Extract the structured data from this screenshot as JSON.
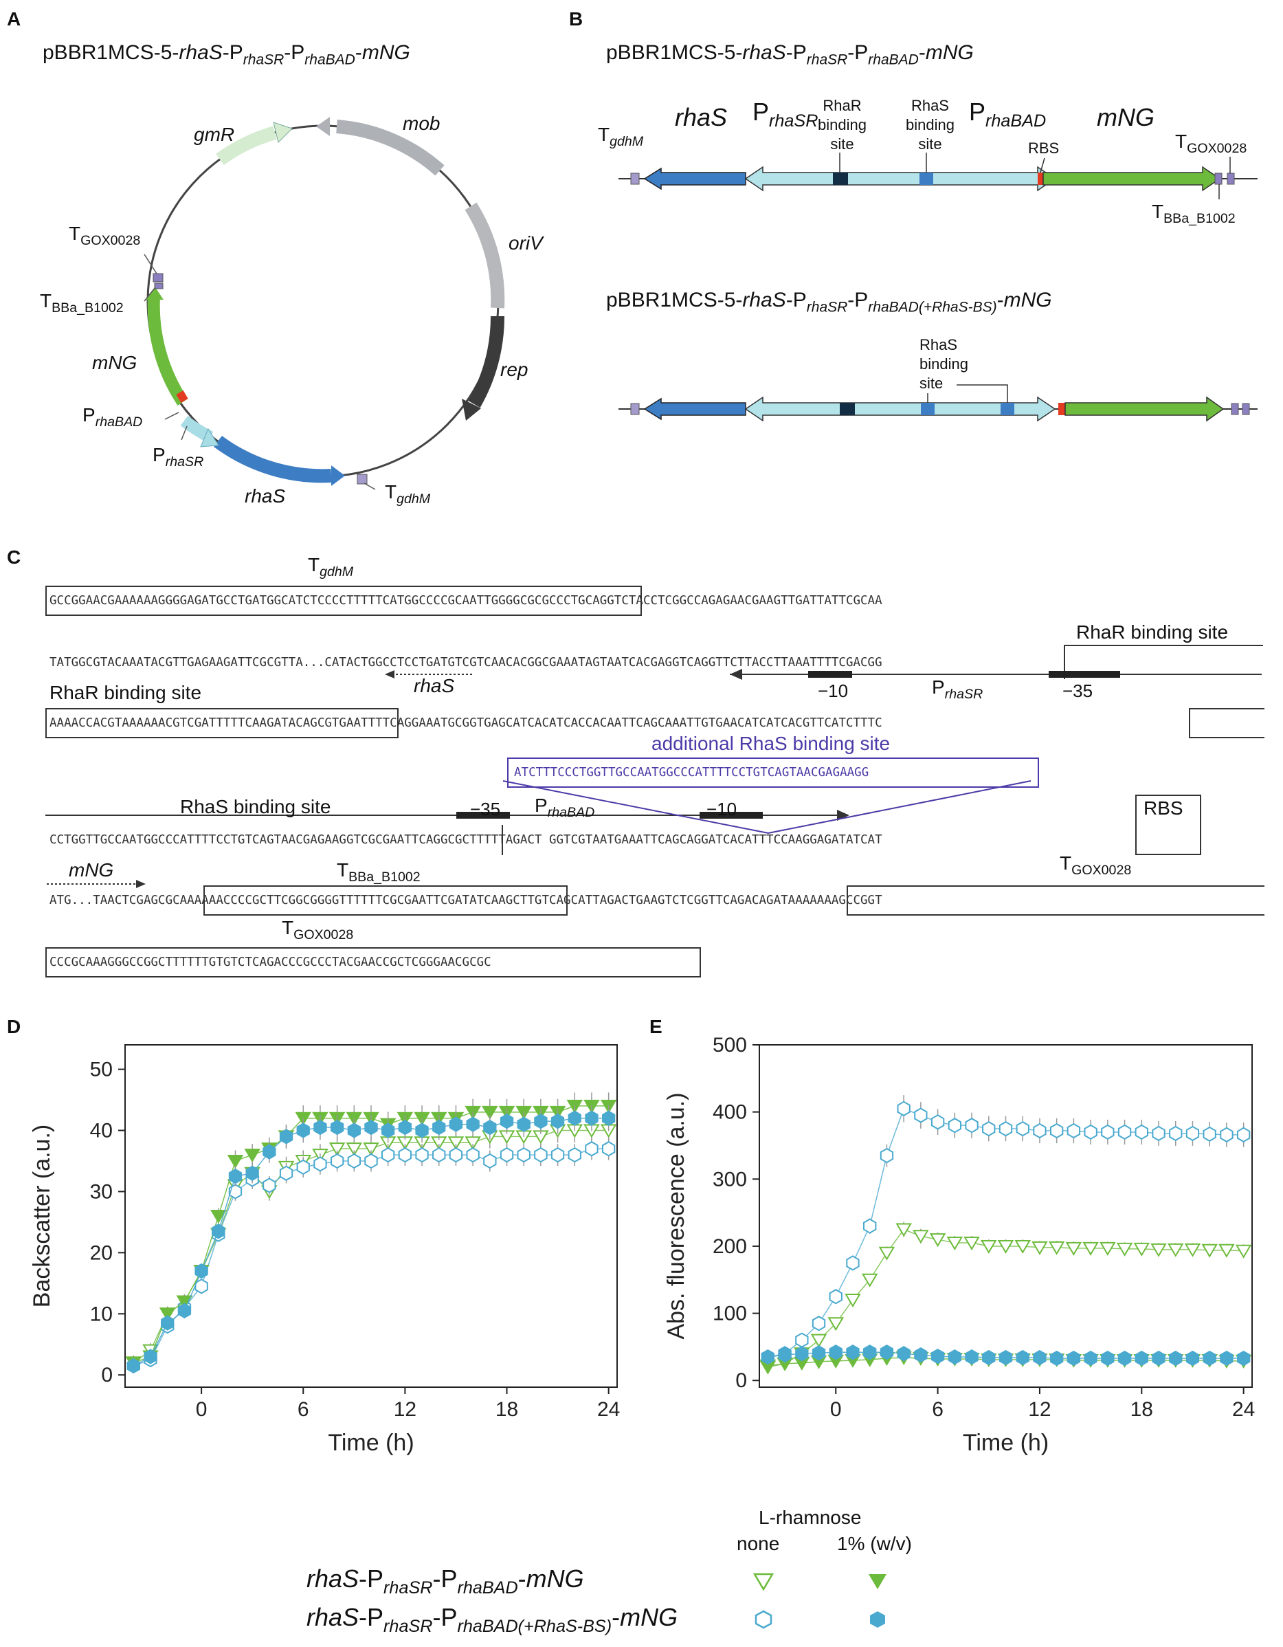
{
  "panels": {
    "a": "A",
    "b": "B",
    "c": "C",
    "d": "D",
    "e": "E"
  },
  "plasmid_a": {
    "title": {
      "p1": "pBBR1MCS-5-",
      "rhaS": "rhaS",
      "dash1": "-P",
      "sub1": "rhaSR",
      "dash2": "-P",
      "sub2": "rhaBAD",
      "dash3": "-",
      "mNG": "mNG"
    },
    "genes": {
      "gmR": "gmR",
      "mob": "mob",
      "oriV": "oriV",
      "rep": "rep",
      "rhaS": "rhaS",
      "mNG": "mNG"
    },
    "elements": {
      "t_gox": "T",
      "t_gox_sub": "GOX0028",
      "t_bba": "T",
      "t_bba_sub": "BBa_B1002",
      "p_bad": "P",
      "p_bad_sub": "rhaBAD",
      "p_sr": "P",
      "p_sr_sub": "rhaSR",
      "t_gdh": "T",
      "t_gdh_sub": "gdhM"
    }
  },
  "construct_b": {
    "title1": {
      "p1": "pBBR1MCS-5-",
      "rhaS": "rhaS",
      "dash1": "-P",
      "sub1": "rhaSR",
      "dash2": "-P",
      "sub2": "rhaBAD",
      "dash3": "-",
      "mNG": "mNG"
    },
    "title2": {
      "p1": "pBBR1MCS-5-",
      "rhaS": "rhaS",
      "dash1": "-P",
      "sub1": "rhaSR",
      "dash2": "-P",
      "sub2": "rhaBAD(+RhaS-BS)",
      "dash3": "-",
      "mNG": "mNG"
    },
    "labels": {
      "t_gdh": "T",
      "t_gdh_sub": "gdhM",
      "rhaS": "rhaS",
      "p_sr": "P",
      "p_sr_sub": "rhaSR",
      "rhar_bs": "RhaR\nbinding\nsite",
      "rhas_bs": "RhaS\nbinding\nsite",
      "p_bad": "P",
      "p_bad_sub": "rhaBAD",
      "rbs": "RBS",
      "mNG": "mNG",
      "t_gox": "T",
      "t_gox_sub": "GOX0028",
      "t_bba": "T",
      "t_bba_sub": "BBa_B1002",
      "rhas_bs2": "RhaS\nbinding\nsite"
    }
  },
  "sequence_c": {
    "tgdhm": {
      "t": "T",
      "sub": "gdhM"
    },
    "line1": "GCCGGAACGAAAAAAGGGGAGATGCCTGATGGCATCTCCCCTTTTTCATGGCCCCGCAATTGGGGCGCGCCCTGCAGGTCTACCTCGGCCAGAGAACGAAGTTGATTATTCGCAA",
    "line2": "TATGGCGTACAAATACGTTGAGAAGATTCGCGTTA...CATACTGGCCTCCTGATGTCGTCAACACGGCGAAATAGTAATCACGAGGTCAGGTTCTTACCTTAAATTTTCGACGG",
    "line3": "AAAACCACGTAAAAAACGTCGATTTTTCAAGATACAGCGTGAATTTTCAGGAAATGCGGTGAGCATCACATCACCACAATTCAGCAAATTGTGAACATCATCACGTTCATCTTTC",
    "line4": "CCTGGTTGCCAATGGCCCATTTTCCTGTCAGTAACGAGAAGGTCGCGAATTCAGGCGCTTTTTAGACT GGTCGTAATGAAATTCAGCAGGATCACATTTCCAAGGAGATATCAT",
    "line5": "ATG...TAACTCGAGCGCAAAAAACCCCGCTTCGGCGGGGTTTTTTCGCGAATTCGATATCAAGCTTGTCAGCATTAGACTGAAGTCTCGGTTCAGACAGATAAAAAAAGCCGGT",
    "line6": "CCCGCAAAGGGCCGGCTTTTTTGTGTCTCAGACCCGCCCTACGAACCGCTCGGGAACGCGC",
    "insert": "ATCTTTCCCTGGTTGCCAATGGCCCATTTTCCTGTCAGTAACGAGAAGG",
    "labels": {
      "rhar1": "RhaR binding site",
      "rhas": "rhaS",
      "m10a": "−10",
      "psr": "P",
      "psr_sub": "rhaSR",
      "m35a": "−35",
      "rhar2": "RhaR binding site",
      "addl": "additional RhaS binding site",
      "rhas_bs": "RhaS binding site",
      "m35b": "−35",
      "pbad": "P",
      "pbad_sub": "rhaBAD",
      "m10b": "−10",
      "rbs": "RBS",
      "mng": "mNG",
      "tbba": "T",
      "tbba_sub": "BBa_B1002",
      "tgox1": "T",
      "tgox1_sub": "GOX0028",
      "tgox2": "T",
      "tgox2_sub": "GOX0028"
    }
  },
  "legend": {
    "header": "L-rhamnose",
    "none": "none",
    "pct": "1% (w/v)",
    "row1": {
      "rhaS": "rhaS",
      "d1": "-P",
      "s1": "rhaSR",
      "d2": "-P",
      "s2": "rhaBAD",
      "d3": "-",
      "mng": "mNG"
    },
    "row2": {
      "rhaS": "rhaS",
      "d1": "-P",
      "s1": "rhaSR",
      "d2": "-P",
      "s2": "rhaBAD(+RhaS-BS)",
      "d3": "-",
      "mng": "mNG"
    }
  },
  "colors": {
    "green": "#6dbb3c",
    "blue": "#49a9cf",
    "lightgreen": "#a0cf7a",
    "lightblue": "#7cc3df"
  },
  "chart_data": [
    {
      "type": "line",
      "panel": "D",
      "xlabel": "Time (h)",
      "ylabel": "Backscatter (a.u.)",
      "xlim": [
        -4.5,
        24.5
      ],
      "ylim": [
        -2,
        54
      ],
      "xticks": [
        0,
        6,
        12,
        18,
        24
      ],
      "yticks": [
        0,
        10,
        20,
        30,
        40,
        50
      ],
      "x": [
        -4,
        -3,
        -2,
        -1,
        0,
        1,
        2,
        3,
        4,
        5,
        6,
        7,
        8,
        9,
        10,
        11,
        12,
        13,
        14,
        15,
        16,
        17,
        18,
        19,
        20,
        21,
        22,
        23,
        24
      ],
      "series": [
        {
          "name": "rhaS-PrhaSR-PrhaBAD-mNG none",
          "marker": "triangle-down-open",
          "color": "#6dbb3c",
          "values": [
            2,
            4,
            10,
            12,
            17,
            23,
            31,
            33,
            30,
            34,
            35,
            36,
            37,
            37,
            37,
            38,
            38,
            38,
            38,
            38,
            38,
            39,
            39,
            39,
            39,
            40,
            40,
            40,
            40
          ]
        },
        {
          "name": "rhaS-PrhaSR-PrhaBAD-mNG 1%",
          "marker": "triangle-down-filled",
          "color": "#6dbb3c",
          "values": [
            2,
            3,
            10,
            12,
            17,
            26,
            35,
            36,
            37,
            39,
            42,
            42,
            42,
            42,
            42,
            41,
            42,
            42,
            42,
            42,
            43,
            43,
            43,
            43,
            43,
            43,
            44,
            44,
            44
          ]
        },
        {
          "name": "rhaS-PrhaSR-PrhaBAD(+RhaS-BS)-mNG none",
          "marker": "hexagon-open",
          "color": "#49a9cf",
          "values": [
            1.5,
            2.5,
            8,
            11,
            14.5,
            23,
            30,
            32,
            31,
            33,
            34,
            34.5,
            35,
            35,
            35,
            36,
            36,
            36,
            36,
            36,
            36,
            35,
            36,
            36,
            36,
            36,
            36,
            37,
            37
          ]
        },
        {
          "name": "rhaS-PrhaSR-PrhaBAD(+RhaS-BS)-mNG 1%",
          "marker": "hexagon-filled",
          "color": "#49a9cf",
          "values": [
            1.5,
            3,
            8.5,
            10.5,
            17,
            23.5,
            32.5,
            33,
            36.5,
            39,
            40,
            40.5,
            40.5,
            40,
            40.5,
            40,
            40.5,
            40,
            40.5,
            41,
            41,
            40.5,
            41.5,
            41,
            41.5,
            41.5,
            42,
            42,
            42
          ]
        }
      ]
    },
    {
      "type": "line",
      "panel": "E",
      "xlabel": "Time (h)",
      "ylabel": "Abs. fluorescence (a.u.)",
      "xlim": [
        -4.5,
        24.5
      ],
      "ylim": [
        -10,
        500
      ],
      "xticks": [
        0,
        6,
        12,
        18,
        24
      ],
      "yticks": [
        0,
        100,
        200,
        300,
        400,
        500
      ],
      "x": [
        -4,
        -3,
        -2,
        -1,
        0,
        1,
        2,
        3,
        4,
        5,
        6,
        7,
        8,
        9,
        10,
        11,
        12,
        13,
        14,
        15,
        16,
        17,
        18,
        19,
        20,
        21,
        22,
        23,
        24
      ],
      "series": [
        {
          "name": "rhaS-PrhaSR-PrhaBAD-mNG none",
          "marker": "triangle-down-open",
          "color": "#6dbb3c",
          "values": [
            20,
            25,
            40,
            60,
            85,
            120,
            150,
            190,
            225,
            215,
            210,
            205,
            205,
            200,
            200,
            200,
            198,
            198,
            197,
            197,
            197,
            196,
            196,
            195,
            195,
            195,
            194,
            194,
            193
          ]
        },
        {
          "name": "rhaS-PrhaSR-PrhaBAD-mNG 1%",
          "marker": "triangle-down-filled",
          "color": "#6dbb3c",
          "values": [
            22,
            25,
            26,
            28,
            29,
            30,
            31,
            33,
            34,
            33,
            32,
            32,
            32,
            31,
            31,
            31,
            31,
            31,
            30,
            30,
            30,
            30,
            30,
            30,
            30,
            30,
            30,
            29,
            29
          ]
        },
        {
          "name": "rhaS-PrhaSR-PrhaBAD(+RhaS-BS)-mNG none",
          "marker": "hexagon-open",
          "color": "#49a9cf",
          "values": [
            35,
            40,
            60,
            85,
            125,
            175,
            230,
            335,
            405,
            395,
            385,
            380,
            380,
            375,
            375,
            375,
            372,
            372,
            372,
            370,
            370,
            370,
            370,
            368,
            368,
            368,
            367,
            366,
            366
          ]
        },
        {
          "name": "rhaS-PrhaSR-PrhaBAD(+RhaS-BS)-mNG 1%",
          "marker": "hexagon-filled",
          "color": "#49a9cf",
          "values": [
            35,
            38,
            40,
            41,
            42,
            42,
            42,
            42,
            40,
            38,
            36,
            35,
            35,
            34,
            34,
            34,
            34,
            33,
            33,
            33,
            33,
            33,
            33,
            33,
            33,
            33,
            33,
            33,
            33
          ]
        }
      ]
    }
  ]
}
